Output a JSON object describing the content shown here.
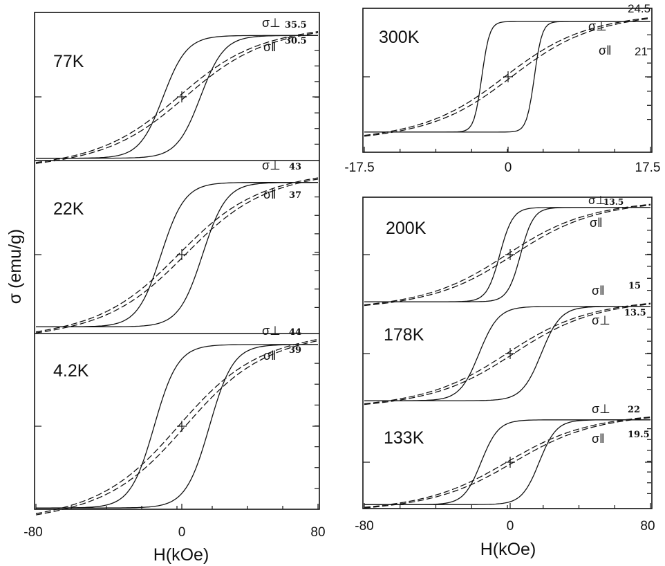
{
  "chart_data": [
    {
      "panel": "left-top",
      "type": "line",
      "temperature": "77K",
      "xlim": [
        -80,
        80
      ],
      "series": [
        {
          "label": "σ⊥",
          "style": "solid",
          "saturation": 35.5,
          "coercive_field": 12
        },
        {
          "label": "σ‖",
          "style": "dashed",
          "value_at_80": 30.5
        }
      ],
      "sat_label": "35.5",
      "par_label": "30.5"
    },
    {
      "panel": "left-middle",
      "type": "line",
      "temperature": "22K",
      "xlim": [
        -80,
        80
      ],
      "series": [
        {
          "label": "σ⊥",
          "style": "solid",
          "saturation": 43,
          "coercive_field": 12
        },
        {
          "label": "σ‖",
          "style": "dashed",
          "value_at_80": 37
        }
      ],
      "sat_label": "43",
      "par_label": "37"
    },
    {
      "panel": "left-bottom",
      "type": "line",
      "temperature": "4.2K",
      "xlim": [
        -80,
        80
      ],
      "series": [
        {
          "label": "σ⊥",
          "style": "solid",
          "saturation": 44,
          "coercive_field": 16
        },
        {
          "label": "σ‖",
          "style": "dashed",
          "value_at_80": 39
        }
      ],
      "sat_label": "44",
      "par_label": "39"
    },
    {
      "panel": "right-top",
      "type": "line",
      "temperature": "300K",
      "xlim": [
        -17.5,
        17.5
      ],
      "x_ticks": [
        "-17.5",
        "0",
        "17.5"
      ],
      "series": [
        {
          "label": "σ⊥",
          "style": "solid",
          "saturation": 24.5,
          "coercive_field": 2
        },
        {
          "label": "σ‖",
          "style": "dashed",
          "value_at_max": 21
        }
      ],
      "sat_label": "24.5",
      "par_label": "21"
    },
    {
      "panel": "right-1",
      "type": "line",
      "temperature": "200K",
      "xlim": [
        -80,
        80
      ],
      "series": [
        {
          "label": "σ⊥",
          "style": "solid",
          "saturation": 13.5,
          "coercive_field": 4
        },
        {
          "label": "σ‖",
          "style": "dashed"
        }
      ],
      "sat_label": "13.5"
    },
    {
      "panel": "right-2",
      "type": "line",
      "temperature": "178K",
      "xlim": [
        -80,
        80
      ],
      "series": [
        {
          "label": "σ‖",
          "style": "dashed",
          "value_at_80": 15
        },
        {
          "label": "σ⊥",
          "style": "solid",
          "saturation": 13.5,
          "coercive_field": 12
        }
      ],
      "par_label": "15",
      "sat_label": "13.5"
    },
    {
      "panel": "right-3",
      "type": "line",
      "temperature": "133K",
      "xlim": [
        -80,
        80
      ],
      "series": [
        {
          "label": "σ⊥",
          "style": "solid",
          "saturation": 22,
          "coercive_field": 14
        },
        {
          "label": "σ‖",
          "style": "dashed",
          "value_at_80": 19.5
        }
      ],
      "sat_label": "22",
      "par_label": "19.5"
    }
  ],
  "axes": {
    "ylabel": "σ (emu/g)",
    "left_xlabel": "H(kOe)",
    "right_xlabel": "H(kOe)",
    "left_x_ticks": [
      "-80",
      "0",
      "80"
    ],
    "right_x_ticks": [
      "-80",
      "0",
      "80"
    ]
  },
  "labels": {
    "perp": "σ⊥",
    "par": "σ‖"
  }
}
